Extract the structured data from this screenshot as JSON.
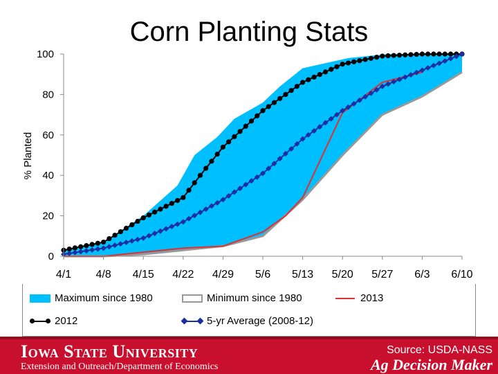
{
  "slide": {
    "title": "Corn Planting Stats"
  },
  "chart_data": {
    "type": "area",
    "ylabel": "% Planted",
    "xlabel": "",
    "ylim": [
      0,
      100
    ],
    "yticks": [
      "0",
      "20",
      "40",
      "60",
      "80",
      "100"
    ],
    "xticks": [
      "4/1",
      "4/8",
      "4/15",
      "4/22",
      "4/29",
      "5/6",
      "5/13",
      "5/20",
      "5/27",
      "6/3",
      "6/10"
    ],
    "grid": false,
    "legend_position": "bottom",
    "series": [
      {
        "name": "Maximum since 1980",
        "kind": "band-upper",
        "color": "#00bfff",
        "x": [
          0,
          7,
          14,
          16,
          20,
          23,
          27,
          30,
          35,
          38,
          42,
          50,
          57,
          70
        ],
        "y": [
          3,
          7,
          20,
          25,
          35,
          50,
          59,
          68,
          76,
          84,
          93,
          98,
          100,
          100
        ]
      },
      {
        "name": "Minimum since 1980",
        "kind": "band-lower",
        "color": "#999999",
        "x": [
          0,
          7,
          14,
          21,
          28,
          35,
          42,
          49,
          56,
          63,
          70
        ],
        "y": [
          0,
          0,
          1,
          3,
          5,
          10,
          28,
          50,
          70,
          79,
          91
        ]
      },
      {
        "name": "2013",
        "kind": "line",
        "color": "#e03030",
        "x": [
          0,
          7,
          14,
          21,
          28,
          35,
          39,
          42,
          49,
          56,
          63
        ],
        "y": [
          0,
          0,
          2,
          4,
          5,
          12,
          20,
          29,
          71,
          86,
          91
        ]
      },
      {
        "name": "2012",
        "kind": "marker-line",
        "color": "#000000",
        "x": [
          0,
          7,
          14,
          21,
          24,
          28,
          35,
          42,
          49,
          56,
          63,
          70
        ],
        "y": [
          3,
          7,
          19,
          29,
          40,
          54,
          72,
          86,
          95,
          99,
          100,
          100
        ]
      },
      {
        "name": "5-yr Average (2008-12)",
        "kind": "marker-line",
        "color": "#1c2fa0",
        "x": [
          0,
          7,
          14,
          21,
          28,
          35,
          42,
          49,
          56,
          63,
          70
        ],
        "y": [
          1,
          4,
          9,
          17,
          28,
          41,
          58,
          72,
          84,
          92,
          100
        ]
      }
    ]
  },
  "footer": {
    "university": "Iowa State University",
    "department": "Extension and Outreach/Department of Economics",
    "source": "Source: USDA-NASS",
    "brand": "Ag Decision Maker"
  }
}
